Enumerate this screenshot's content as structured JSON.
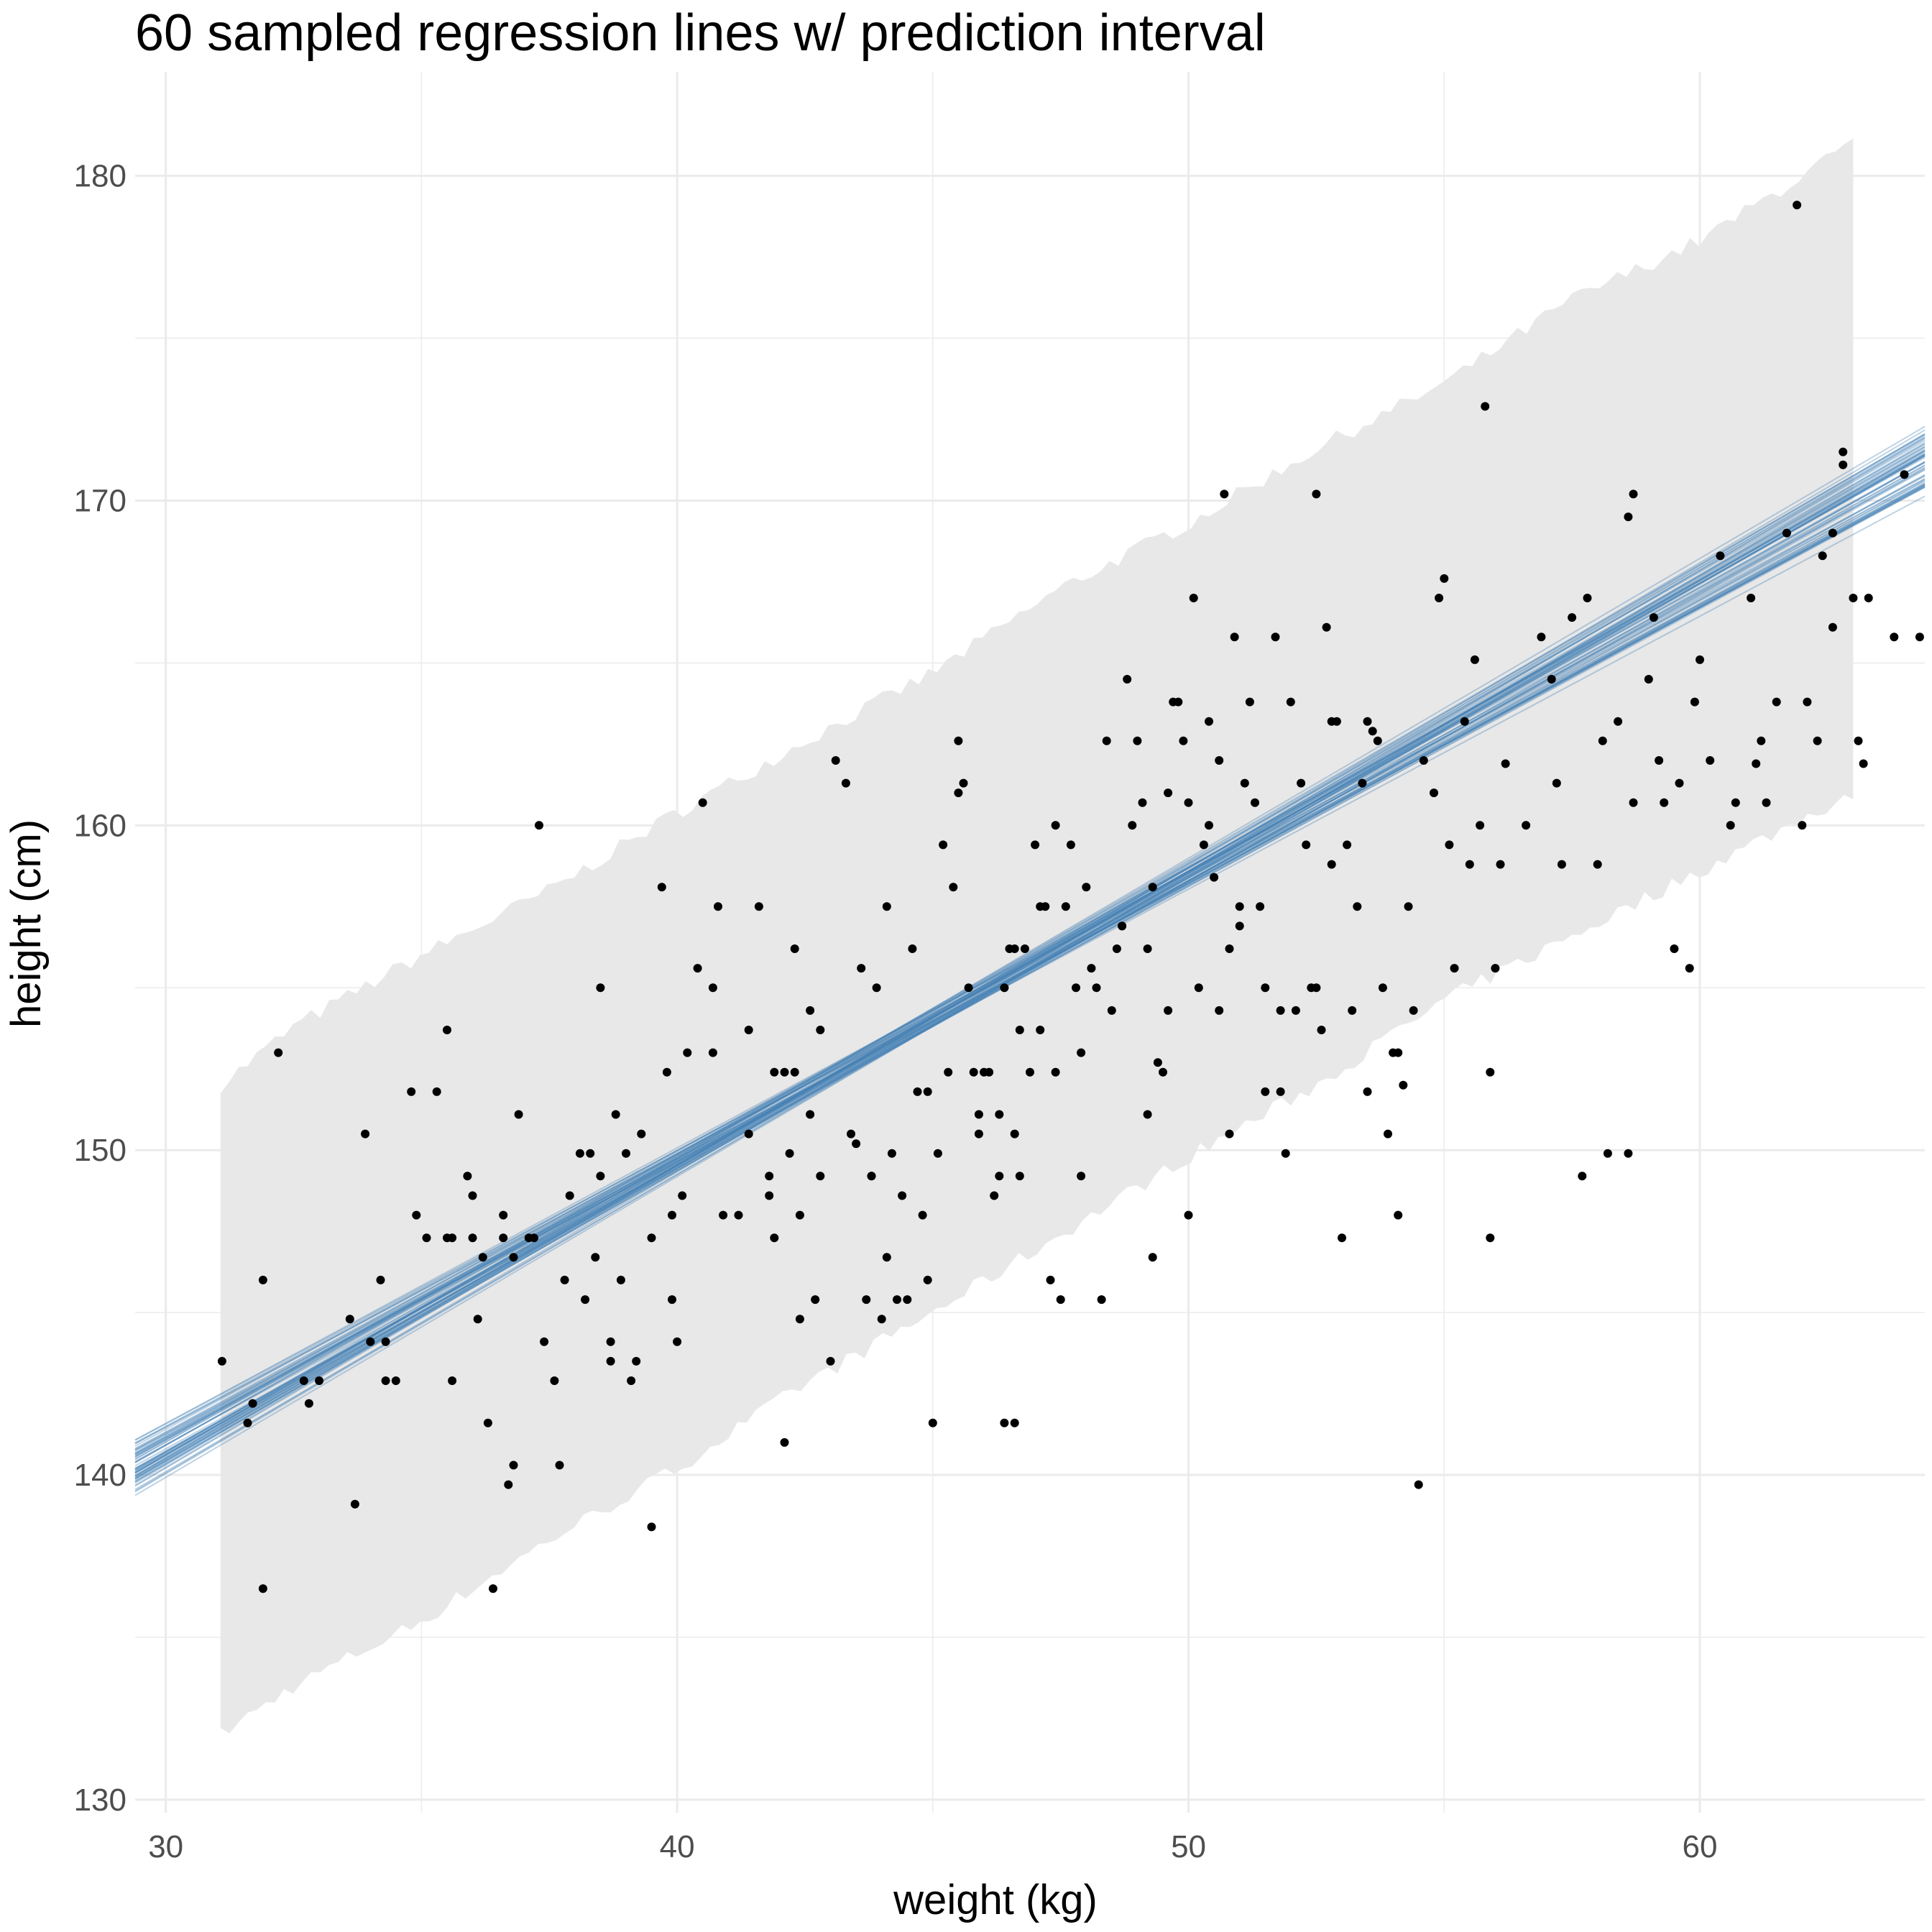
{
  "chart_data": {
    "type": "scatter",
    "title": "60 sampled regression lines w/ prediction interval",
    "xlabel": "weight (kg)",
    "ylabel": "height (cm)",
    "xlim": [
      29.4,
      64.4
    ],
    "ylim": [
      129.6,
      183.2
    ],
    "x_ticks": [
      30,
      40,
      50,
      60
    ],
    "y_ticks": [
      130,
      140,
      150,
      160,
      170,
      180
    ],
    "x_minor_ticks": [
      35,
      45,
      55
    ],
    "y_minor_ticks": [
      135,
      145,
      155,
      165,
      175
    ],
    "grid": true,
    "legend": "none",
    "colors": {
      "points": "#000000",
      "lines": "#4682b4",
      "band": "#e8e8e8",
      "grid": "#ebebeb"
    },
    "regression_lines": {
      "count": 60,
      "intercept_range": [
        113.0,
        115.5
      ],
      "slope_range": [
        0.84,
        0.93
      ],
      "pivot_weight": 45.0
    },
    "prediction_interval": {
      "weights": [
        31.07,
        32.5,
        35,
        37.5,
        40,
        42.5,
        45,
        47.5,
        50,
        52.5,
        55,
        57.5,
        60,
        63.0
      ],
      "upper": [
        152.0,
        153.8,
        156.0,
        158.0,
        160.4,
        162.6,
        164.7,
        167.3,
        169.3,
        171.6,
        173.6,
        176.2,
        178.0,
        181.0
      ],
      "lower": [
        132.0,
        133.5,
        135.5,
        138.0,
        140.2,
        142.8,
        145.0,
        147.4,
        149.8,
        152.0,
        154.6,
        156.6,
        158.6,
        161.0
      ]
    },
    "points": [
      [
        31.1,
        143.5
      ],
      [
        31.6,
        141.6
      ],
      [
        31.7,
        142.2
      ],
      [
        31.9,
        146.0
      ],
      [
        31.9,
        136.5
      ],
      [
        32.2,
        153.0
      ],
      [
        32.7,
        142.9
      ],
      [
        32.8,
        142.2
      ],
      [
        33.0,
        142.9
      ],
      [
        33.6,
        144.8
      ],
      [
        33.7,
        139.1
      ],
      [
        33.9,
        150.5
      ],
      [
        34.0,
        144.1
      ],
      [
        34.2,
        146.0
      ],
      [
        34.3,
        142.9
      ],
      [
        34.3,
        144.1
      ],
      [
        34.5,
        142.9
      ],
      [
        34.8,
        151.8
      ],
      [
        34.9,
        148.0
      ],
      [
        35.1,
        147.3
      ],
      [
        35.3,
        151.8
      ],
      [
        35.5,
        153.7
      ],
      [
        35.5,
        147.3
      ],
      [
        35.6,
        147.3
      ],
      [
        35.6,
        142.9
      ],
      [
        35.9,
        149.2
      ],
      [
        36.0,
        148.6
      ],
      [
        36.0,
        147.3
      ],
      [
        36.1,
        144.8
      ],
      [
        36.2,
        146.7
      ],
      [
        36.3,
        141.6
      ],
      [
        36.4,
        136.5
      ],
      [
        36.6,
        147.3
      ],
      [
        36.6,
        148.0
      ],
      [
        36.7,
        139.7
      ],
      [
        36.8,
        140.3
      ],
      [
        36.8,
        146.7
      ],
      [
        36.9,
        151.1
      ],
      [
        37.1,
        147.3
      ],
      [
        37.2,
        147.3
      ],
      [
        37.3,
        160.0
      ],
      [
        37.4,
        144.1
      ],
      [
        37.6,
        142.9
      ],
      [
        37.7,
        140.3
      ],
      [
        37.8,
        146.0
      ],
      [
        37.9,
        148.6
      ],
      [
        38.1,
        149.9
      ],
      [
        38.2,
        145.4
      ],
      [
        38.3,
        149.9
      ],
      [
        38.4,
        146.7
      ],
      [
        38.5,
        155.0
      ],
      [
        38.5,
        149.2
      ],
      [
        38.7,
        144.1
      ],
      [
        38.7,
        143.5
      ],
      [
        38.8,
        151.1
      ],
      [
        38.9,
        146.0
      ],
      [
        39.0,
        149.9
      ],
      [
        39.1,
        142.9
      ],
      [
        39.2,
        143.5
      ],
      [
        39.3,
        150.5
      ],
      [
        39.5,
        138.4
      ],
      [
        39.5,
        147.3
      ],
      [
        39.7,
        158.1
      ],
      [
        39.8,
        152.4
      ],
      [
        39.9,
        145.4
      ],
      [
        39.9,
        148.0
      ],
      [
        40.0,
        144.1
      ],
      [
        40.1,
        148.6
      ],
      [
        40.2,
        153.0
      ],
      [
        40.4,
        155.6
      ],
      [
        40.5,
        160.7
      ],
      [
        40.7,
        153.0
      ],
      [
        40.7,
        155.0
      ],
      [
        40.8,
        157.5
      ],
      [
        40.9,
        148.0
      ],
      [
        41.2,
        148.0
      ],
      [
        41.4,
        150.5
      ],
      [
        41.4,
        153.7
      ],
      [
        41.6,
        157.5
      ],
      [
        41.8,
        148.6
      ],
      [
        41.8,
        149.2
      ],
      [
        41.9,
        147.3
      ],
      [
        41.9,
        152.4
      ],
      [
        42.1,
        152.4
      ],
      [
        42.1,
        141.0
      ],
      [
        42.2,
        149.9
      ],
      [
        42.3,
        156.2
      ],
      [
        42.3,
        152.4
      ],
      [
        42.4,
        148.0
      ],
      [
        42.4,
        144.8
      ],
      [
        42.6,
        151.1
      ],
      [
        42.6,
        154.3
      ],
      [
        42.7,
        145.4
      ],
      [
        42.8,
        153.7
      ],
      [
        42.8,
        149.2
      ],
      [
        43.0,
        143.5
      ],
      [
        43.1,
        162.0
      ],
      [
        43.3,
        161.3
      ],
      [
        43.4,
        150.5
      ],
      [
        43.5,
        150.2
      ],
      [
        43.6,
        155.6
      ],
      [
        43.7,
        145.4
      ],
      [
        43.8,
        149.2
      ],
      [
        43.8,
        149.2
      ],
      [
        43.9,
        155.0
      ],
      [
        44.0,
        144.8
      ],
      [
        44.1,
        146.7
      ],
      [
        44.1,
        157.5
      ],
      [
        44.2,
        149.9
      ],
      [
        44.3,
        145.4
      ],
      [
        44.4,
        148.6
      ],
      [
        44.5,
        145.4
      ],
      [
        44.6,
        156.2
      ],
      [
        44.7,
        151.8
      ],
      [
        44.8,
        148.0
      ],
      [
        44.9,
        146.0
      ],
      [
        44.9,
        151.8
      ],
      [
        45.0,
        141.6
      ],
      [
        45.1,
        149.9
      ],
      [
        45.2,
        159.4
      ],
      [
        45.3,
        152.4
      ],
      [
        45.4,
        158.1
      ],
      [
        45.5,
        162.6
      ],
      [
        45.5,
        161.0
      ],
      [
        45.6,
        161.3
      ],
      [
        45.7,
        155.0
      ],
      [
        45.8,
        152.4
      ],
      [
        45.9,
        150.5
      ],
      [
        45.9,
        151.1
      ],
      [
        46.0,
        152.4
      ],
      [
        46.1,
        152.4
      ],
      [
        46.2,
        148.6
      ],
      [
        46.3,
        151.1
      ],
      [
        46.3,
        149.2
      ],
      [
        46.4,
        155.0
      ],
      [
        46.4,
        141.6
      ],
      [
        46.5,
        156.2
      ],
      [
        46.6,
        156.2
      ],
      [
        46.6,
        150.5
      ],
      [
        46.6,
        141.6
      ],
      [
        46.7,
        149.2
      ],
      [
        46.7,
        153.7
      ],
      [
        46.8,
        156.2
      ],
      [
        46.9,
        152.4
      ],
      [
        47.0,
        159.4
      ],
      [
        47.1,
        153.7
      ],
      [
        47.1,
        157.5
      ],
      [
        47.2,
        157.5
      ],
      [
        47.3,
        146.0
      ],
      [
        47.4,
        160.0
      ],
      [
        47.4,
        152.4
      ],
      [
        47.5,
        145.4
      ],
      [
        47.6,
        157.5
      ],
      [
        47.7,
        159.4
      ],
      [
        47.8,
        155.0
      ],
      [
        47.9,
        153.0
      ],
      [
        47.9,
        149.2
      ],
      [
        48.0,
        158.1
      ],
      [
        48.1,
        155.6
      ],
      [
        48.2,
        155.0
      ],
      [
        48.3,
        145.4
      ],
      [
        48.4,
        162.6
      ],
      [
        48.5,
        154.3
      ],
      [
        48.6,
        156.2
      ],
      [
        48.7,
        156.9
      ],
      [
        48.7,
        156.9
      ],
      [
        48.8,
        164.5
      ],
      [
        48.9,
        160.0
      ],
      [
        49.0,
        162.6
      ],
      [
        49.1,
        160.7
      ],
      [
        49.2,
        151.1
      ],
      [
        49.2,
        156.2
      ],
      [
        49.3,
        158.1
      ],
      [
        49.3,
        146.7
      ],
      [
        49.4,
        152.7
      ],
      [
        49.5,
        152.4
      ],
      [
        49.6,
        161.0
      ],
      [
        49.6,
        154.3
      ],
      [
        49.7,
        163.8
      ],
      [
        49.8,
        163.8
      ],
      [
        49.9,
        162.6
      ],
      [
        50.0,
        148.0
      ],
      [
        50.0,
        160.7
      ],
      [
        50.1,
        167.0
      ],
      [
        50.2,
        155.0
      ],
      [
        50.3,
        159.4
      ],
      [
        50.4,
        163.2
      ],
      [
        50.4,
        160.0
      ],
      [
        50.5,
        158.4
      ],
      [
        50.6,
        162.0
      ],
      [
        50.6,
        154.3
      ],
      [
        50.7,
        170.2
      ],
      [
        50.8,
        156.2
      ],
      [
        50.8,
        150.5
      ],
      [
        50.9,
        165.8
      ],
      [
        51.0,
        157.5
      ],
      [
        51.0,
        156.9
      ],
      [
        51.1,
        161.3
      ],
      [
        51.2,
        163.8
      ],
      [
        51.3,
        160.7
      ],
      [
        51.4,
        157.5
      ],
      [
        51.5,
        155.0
      ],
      [
        51.5,
        151.8
      ],
      [
        51.7,
        165.8
      ],
      [
        51.8,
        154.3
      ],
      [
        51.8,
        151.8
      ],
      [
        51.9,
        149.9
      ],
      [
        52.0,
        163.8
      ],
      [
        52.1,
        154.3
      ],
      [
        52.2,
        161.3
      ],
      [
        52.3,
        159.4
      ],
      [
        52.4,
        155.0
      ],
      [
        52.5,
        170.2
      ],
      [
        52.5,
        155.0
      ],
      [
        52.6,
        153.7
      ],
      [
        52.7,
        166.1
      ],
      [
        52.8,
        163.2
      ],
      [
        52.8,
        158.8
      ],
      [
        52.9,
        163.2
      ],
      [
        53.0,
        147.3
      ],
      [
        53.1,
        159.4
      ],
      [
        53.2,
        154.3
      ],
      [
        53.3,
        157.5
      ],
      [
        53.4,
        161.3
      ],
      [
        53.5,
        163.2
      ],
      [
        53.5,
        151.8
      ],
      [
        53.6,
        162.9
      ],
      [
        53.7,
        162.6
      ],
      [
        53.8,
        155.0
      ],
      [
        53.9,
        150.5
      ],
      [
        54.0,
        153.0
      ],
      [
        54.1,
        153.0
      ],
      [
        54.1,
        148.0
      ],
      [
        54.2,
        152.0
      ],
      [
        54.3,
        157.5
      ],
      [
        54.4,
        154.3
      ],
      [
        54.5,
        139.7
      ],
      [
        54.6,
        162.0
      ],
      [
        54.8,
        161.0
      ],
      [
        54.9,
        167.0
      ],
      [
        55.0,
        167.6
      ],
      [
        55.1,
        159.4
      ],
      [
        55.2,
        155.6
      ],
      [
        55.4,
        163.2
      ],
      [
        55.5,
        158.8
      ],
      [
        55.6,
        165.1
      ],
      [
        55.7,
        160.0
      ],
      [
        55.8,
        172.9
      ],
      [
        55.9,
        147.3
      ],
      [
        55.9,
        152.4
      ],
      [
        56.0,
        155.6
      ],
      [
        56.1,
        158.8
      ],
      [
        56.2,
        161.9
      ],
      [
        56.6,
        160.0
      ],
      [
        56.9,
        165.8
      ],
      [
        57.1,
        164.5
      ],
      [
        57.2,
        161.3
      ],
      [
        57.3,
        158.8
      ],
      [
        57.5,
        166.4
      ],
      [
        57.7,
        149.2
      ],
      [
        57.8,
        167.0
      ],
      [
        58.0,
        158.8
      ],
      [
        58.1,
        162.6
      ],
      [
        58.2,
        149.9
      ],
      [
        58.4,
        163.2
      ],
      [
        58.6,
        169.5
      ],
      [
        58.6,
        149.9
      ],
      [
        58.7,
        170.2
      ],
      [
        58.7,
        160.7
      ],
      [
        59.0,
        164.5
      ],
      [
        59.1,
        166.4
      ],
      [
        59.2,
        162.0
      ],
      [
        59.3,
        160.7
      ],
      [
        59.5,
        156.2
      ],
      [
        59.6,
        161.3
      ],
      [
        59.8,
        155.6
      ],
      [
        59.9,
        163.8
      ],
      [
        60.0,
        165.1
      ],
      [
        60.2,
        162.0
      ],
      [
        60.4,
        168.3
      ],
      [
        60.6,
        160.0
      ],
      [
        60.7,
        160.7
      ],
      [
        61.0,
        167.0
      ],
      [
        61.1,
        161.9
      ],
      [
        61.2,
        162.6
      ],
      [
        61.3,
        160.7
      ],
      [
        61.5,
        163.8
      ],
      [
        61.7,
        169.0
      ],
      [
        61.9,
        179.1
      ],
      [
        62.0,
        160.0
      ],
      [
        62.1,
        163.8
      ],
      [
        62.3,
        162.6
      ],
      [
        62.4,
        168.3
      ],
      [
        62.6,
        166.1
      ],
      [
        62.6,
        169.0
      ],
      [
        62.8,
        171.5
      ],
      [
        62.8,
        171.1
      ],
      [
        63.0,
        167.0
      ],
      [
        63.1,
        162.6
      ],
      [
        63.2,
        161.9
      ],
      [
        63.3,
        167.0
      ],
      [
        63.8,
        165.8
      ],
      [
        64.0,
        170.8
      ],
      [
        64.3,
        165.8
      ]
    ]
  }
}
